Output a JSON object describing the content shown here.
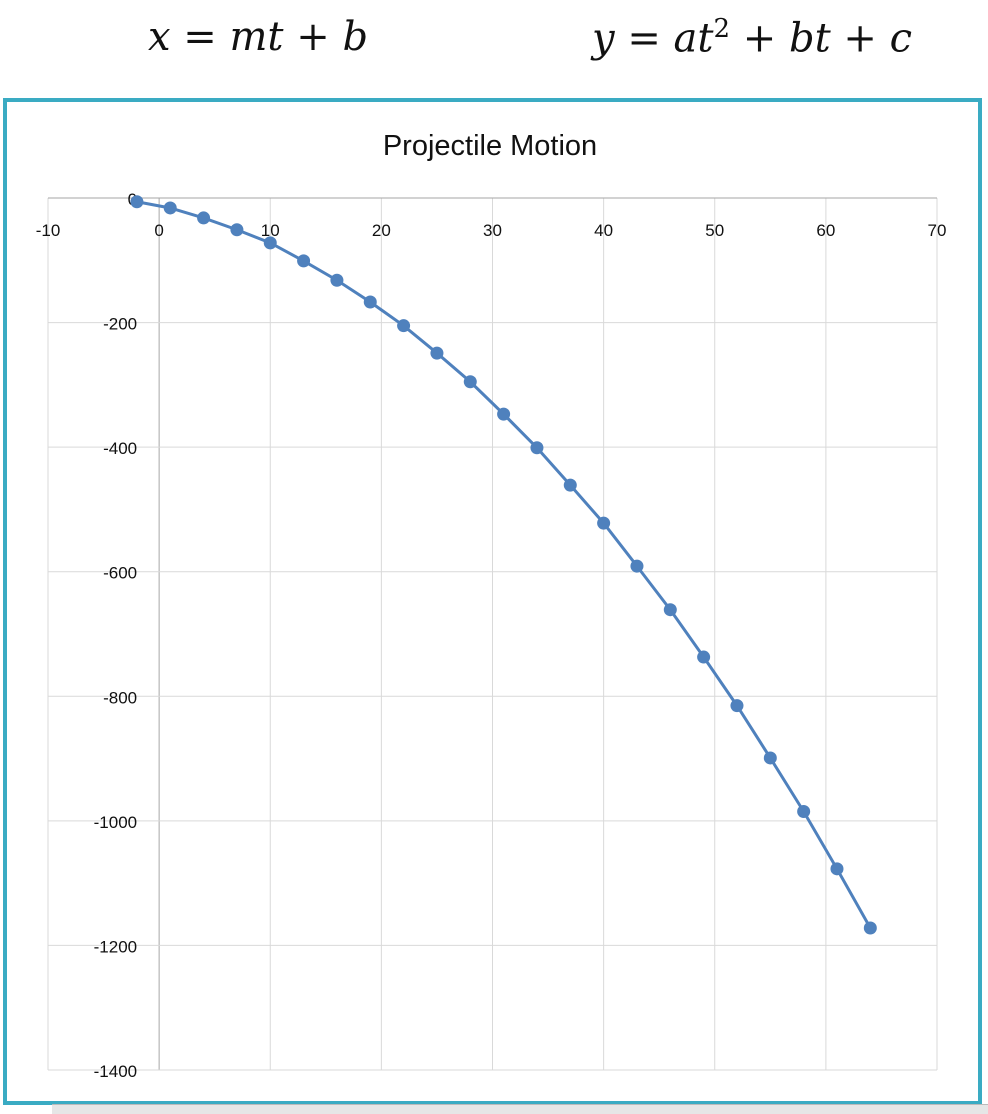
{
  "equations": {
    "x_eq": "x = mt + b",
    "y_eq": "y = at² + bt + c"
  },
  "colors": {
    "frame": "#3aabc3",
    "series": "#4f81bd",
    "grid": "#d9d9d9"
  },
  "chart_data": {
    "type": "scatter",
    "title": "Projectile Motion",
    "xlim": [
      -10,
      70
    ],
    "ylim": [
      -1400,
      0
    ],
    "xticks": [
      -10,
      0,
      10,
      20,
      30,
      40,
      50,
      60,
      70
    ],
    "yticks": [
      0,
      -200,
      -400,
      -600,
      -800,
      -1000,
      -1200,
      -1400
    ],
    "grid": true,
    "legend": "none",
    "smooth_line": true,
    "series": [
      {
        "x": [
          -2,
          1,
          4,
          7,
          10,
          13,
          16,
          19,
          22,
          25,
          28,
          31,
          34,
          37,
          40,
          43,
          46,
          49,
          52,
          55,
          58,
          61,
          64
        ],
        "y": [
          -6,
          -16,
          -32,
          -51,
          -72,
          -101,
          -132,
          -167,
          -205,
          -249,
          -295,
          -347,
          -401,
          -461,
          -522,
          -591,
          -661,
          -737,
          -815,
          -899,
          -985,
          -1077,
          -1172
        ]
      }
    ]
  }
}
